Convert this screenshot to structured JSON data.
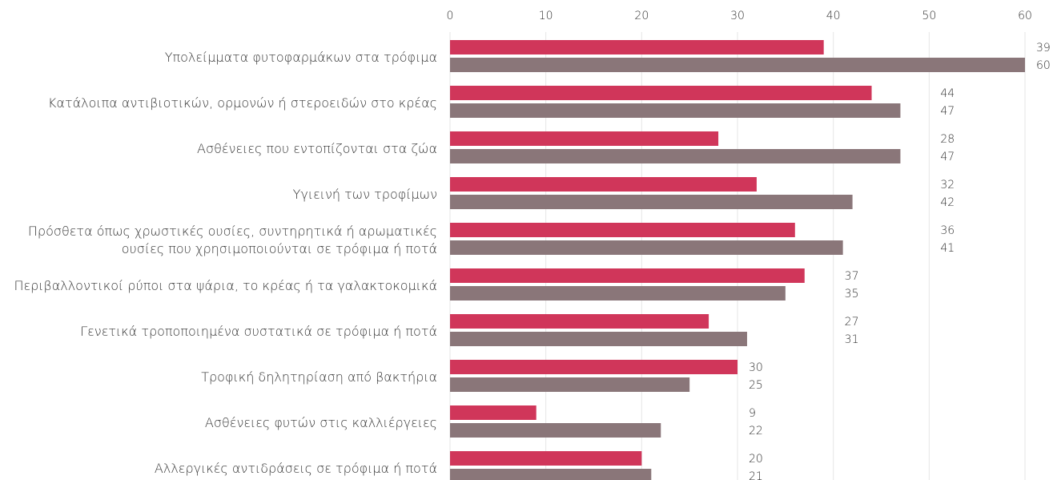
{
  "chart_data": {
    "type": "bar",
    "orientation": "horizontal",
    "categories": [
      "Υπολείμματα φυτοφαρμάκων στα τρόφιμα",
      "Κατάλοιπα αντιβιοτικών, ορμονών ή στεροειδών στο κρέας",
      "Ασθένειες που εντοπίζονται στα ζώα",
      "Υγιεινή των τροφίμων",
      "Πρόσθετα όπως χρωστικές ουσίες, συντηρητικά ή αρωματικές\nουσίες που χρησιμοποιούνται σε τρόφιμα ή ποτά",
      "Περιβαλλοντικοί ρύποι στα ψάρια, το κρέας ή τα γαλακτοκομικά",
      "Γενετικά τροποποιημένα συστατικά σε τρόφιμα ή ποτά",
      "Τροφική δηλητηρίαση από βακτήρια",
      "Ασθένειες φυτών στις καλλιέργειες",
      "Αλλεργικές αντιδράσεις σε τρόφιμα ή ποτά"
    ],
    "series": [
      {
        "color": "#d0365a",
        "values": [
          39,
          44,
          28,
          32,
          36,
          37,
          27,
          30,
          9,
          20
        ]
      },
      {
        "color": "#8a7679",
        "values": [
          60,
          47,
          47,
          42,
          41,
          35,
          31,
          25,
          22,
          21
        ]
      }
    ],
    "xlim": [
      0,
      60
    ],
    "xticks": [
      0,
      10,
      20,
      30,
      40,
      50,
      60
    ],
    "grid": true
  }
}
